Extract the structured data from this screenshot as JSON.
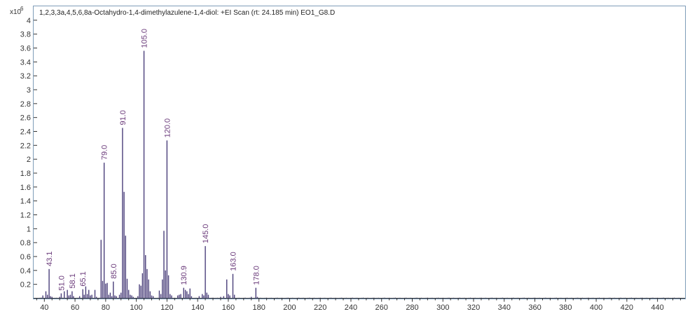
{
  "chart_data": {
    "type": "bar",
    "title": "1,2,3,3a,4,5,6,8a-Octahydro-1,4-dimethylazulene-1,4-diol: +EI Scan (rt: 24.185 min) EO1_G8.D",
    "y_scale_label": "x10",
    "y_scale_exponent": "6",
    "xlabel": "",
    "ylabel": "",
    "xlim": [
      33,
      458
    ],
    "ylim": [
      0,
      4.2
    ],
    "x_ticks": [
      40,
      60,
      80,
      100,
      120,
      140,
      160,
      180,
      200,
      220,
      240,
      260,
      280,
      300,
      320,
      340,
      360,
      380,
      400,
      420,
      440
    ],
    "x_tick_labels": [
      "40",
      "60",
      "80",
      "100",
      "120",
      "140",
      "160",
      "180",
      "200",
      "220",
      "240",
      "260",
      "280",
      "300",
      "320",
      "340",
      "360",
      "380",
      "400",
      "420",
      "440"
    ],
    "y_ticks": [
      0.2,
      0.4,
      0.6,
      0.8,
      1,
      1.2,
      1.4,
      1.6,
      1.8,
      2,
      2.2,
      2.4,
      2.6,
      2.8,
      3,
      3.2,
      3.4,
      3.6,
      3.8,
      4
    ],
    "y_tick_labels": [
      "0.2",
      "0.4",
      "0.6",
      "0.8",
      "1",
      "1.2",
      "1.4",
      "1.6",
      "1.8",
      "2",
      "2.2",
      "2.4",
      "2.6",
      "2.8",
      "3",
      "3.2",
      "3.4",
      "3.6",
      "3.8",
      "4"
    ],
    "grid": false,
    "bar_color": "#4a3f7a",
    "label_color": "#6a3a7a",
    "frame_color": "#7f9db9",
    "peaks": [
      {
        "mz": 39,
        "intensity": 0.04
      },
      {
        "mz": 41,
        "intensity": 0.1
      },
      {
        "mz": 42,
        "intensity": 0.05
      },
      {
        "mz": 43.1,
        "intensity": 0.42,
        "label": "43.1"
      },
      {
        "mz": 44,
        "intensity": 0.03
      },
      {
        "mz": 45,
        "intensity": 0.02
      },
      {
        "mz": 50,
        "intensity": 0.02
      },
      {
        "mz": 51,
        "intensity": 0.07,
        "label": "51.0"
      },
      {
        "mz": 53,
        "intensity": 0.1
      },
      {
        "mz": 55,
        "intensity": 0.12
      },
      {
        "mz": 56,
        "intensity": 0.04
      },
      {
        "mz": 57,
        "intensity": 0.05
      },
      {
        "mz": 58.1,
        "intensity": 0.1,
        "label": "58.1"
      },
      {
        "mz": 59,
        "intensity": 0.03
      },
      {
        "mz": 63,
        "intensity": 0.03
      },
      {
        "mz": 65.1,
        "intensity": 0.13,
        "label": "65.1"
      },
      {
        "mz": 66,
        "intensity": 0.05
      },
      {
        "mz": 67,
        "intensity": 0.17
      },
      {
        "mz": 68,
        "intensity": 0.06
      },
      {
        "mz": 69,
        "intensity": 0.12
      },
      {
        "mz": 70,
        "intensity": 0.04
      },
      {
        "mz": 71,
        "intensity": 0.05
      },
      {
        "mz": 73,
        "intensity": 0.12
      },
      {
        "mz": 74,
        "intensity": 0.02
      },
      {
        "mz": 77,
        "intensity": 0.84
      },
      {
        "mz": 78,
        "intensity": 0.25
      },
      {
        "mz": 79,
        "intensity": 1.95,
        "label": "79.0"
      },
      {
        "mz": 80,
        "intensity": 0.21
      },
      {
        "mz": 81,
        "intensity": 0.22
      },
      {
        "mz": 82,
        "intensity": 0.05
      },
      {
        "mz": 83,
        "intensity": 0.08
      },
      {
        "mz": 84,
        "intensity": 0.03
      },
      {
        "mz": 85,
        "intensity": 0.24,
        "label": "85.0"
      },
      {
        "mz": 86,
        "intensity": 0.04
      },
      {
        "mz": 87,
        "intensity": 0.03
      },
      {
        "mz": 89,
        "intensity": 0.05
      },
      {
        "mz": 90,
        "intensity": 0.08
      },
      {
        "mz": 91,
        "intensity": 2.45,
        "label": "91.0"
      },
      {
        "mz": 92,
        "intensity": 1.53
      },
      {
        "mz": 93,
        "intensity": 0.9
      },
      {
        "mz": 94,
        "intensity": 0.28
      },
      {
        "mz": 95,
        "intensity": 0.12
      },
      {
        "mz": 96,
        "intensity": 0.05
      },
      {
        "mz": 97,
        "intensity": 0.04
      },
      {
        "mz": 98,
        "intensity": 0.02
      },
      {
        "mz": 101,
        "intensity": 0.03
      },
      {
        "mz": 102,
        "intensity": 0.2
      },
      {
        "mz": 103,
        "intensity": 0.18
      },
      {
        "mz": 104,
        "intensity": 0.36
      },
      {
        "mz": 105,
        "intensity": 3.56,
        "label": "105.0"
      },
      {
        "mz": 106,
        "intensity": 0.62
      },
      {
        "mz": 107,
        "intensity": 0.42
      },
      {
        "mz": 108,
        "intensity": 0.27
      },
      {
        "mz": 109,
        "intensity": 0.1
      },
      {
        "mz": 110,
        "intensity": 0.04
      },
      {
        "mz": 111,
        "intensity": 0.03
      },
      {
        "mz": 115,
        "intensity": 0.11
      },
      {
        "mz": 116,
        "intensity": 0.06
      },
      {
        "mz": 117,
        "intensity": 0.27
      },
      {
        "mz": 118,
        "intensity": 0.97
      },
      {
        "mz": 119,
        "intensity": 0.4
      },
      {
        "mz": 120,
        "intensity": 2.27,
        "label": "120.0"
      },
      {
        "mz": 121,
        "intensity": 0.33
      },
      {
        "mz": 122,
        "intensity": 0.06
      },
      {
        "mz": 123,
        "intensity": 0.04
      },
      {
        "mz": 127,
        "intensity": 0.04
      },
      {
        "mz": 128,
        "intensity": 0.05
      },
      {
        "mz": 129,
        "intensity": 0.06
      },
      {
        "mz": 130.9,
        "intensity": 0.15,
        "label": "130.9"
      },
      {
        "mz": 132,
        "intensity": 0.12
      },
      {
        "mz": 133,
        "intensity": 0.1
      },
      {
        "mz": 134,
        "intensity": 0.06
      },
      {
        "mz": 135,
        "intensity": 0.14
      },
      {
        "mz": 136,
        "intensity": 0.03
      },
      {
        "mz": 141,
        "intensity": 0.03
      },
      {
        "mz": 143,
        "intensity": 0.06
      },
      {
        "mz": 144,
        "intensity": 0.04
      },
      {
        "mz": 145,
        "intensity": 0.75,
        "label": "145.0"
      },
      {
        "mz": 146,
        "intensity": 0.08
      },
      {
        "mz": 147,
        "intensity": 0.05
      },
      {
        "mz": 155,
        "intensity": 0.02
      },
      {
        "mz": 157,
        "intensity": 0.03
      },
      {
        "mz": 159,
        "intensity": 0.27
      },
      {
        "mz": 160,
        "intensity": 0.06
      },
      {
        "mz": 161,
        "intensity": 0.04
      },
      {
        "mz": 163,
        "intensity": 0.35,
        "label": "163.0"
      },
      {
        "mz": 164,
        "intensity": 0.05
      },
      {
        "mz": 175,
        "intensity": 0.02
      },
      {
        "mz": 178,
        "intensity": 0.15,
        "label": "178.0"
      },
      {
        "mz": 179,
        "intensity": 0.02
      }
    ]
  }
}
